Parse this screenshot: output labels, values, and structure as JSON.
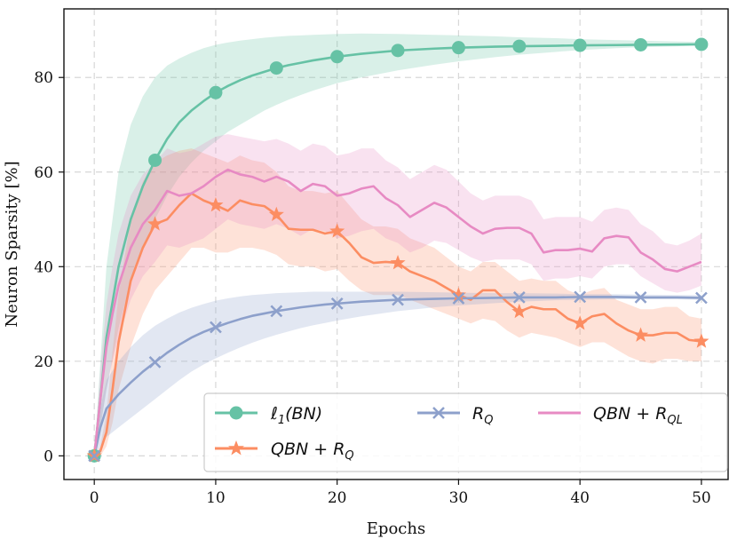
{
  "chart_data": {
    "type": "line",
    "xlabel": "Epochs",
    "ylabel": "Neuron Sparsity [%]",
    "xlim": [
      -2.5,
      52.2
    ],
    "ylim": [
      -5,
      94.5
    ],
    "xticks": [
      0,
      10,
      20,
      30,
      40,
      50
    ],
    "yticks": [
      0,
      20,
      40,
      60,
      80
    ],
    "grid": true,
    "legend_position": "lower-right",
    "series": [
      {
        "name": "ℓ1(BN)",
        "color": "#66c2a5",
        "marker": "circle",
        "x": [
          0,
          0.5,
          1,
          2,
          3,
          4,
          5,
          6,
          7,
          8,
          9,
          10,
          11,
          12,
          13,
          14,
          15,
          16,
          17,
          18,
          19,
          20,
          22,
          25,
          28,
          30,
          33,
          35,
          38,
          40,
          43,
          45,
          48,
          50
        ],
        "y": [
          0,
          12,
          25,
          40,
          50,
          57,
          62.5,
          67,
          70.5,
          73,
          75,
          76.8,
          78.2,
          79.4,
          80.4,
          81.2,
          82,
          82.6,
          83.1,
          83.6,
          84,
          84.4,
          85,
          85.7,
          86.1,
          86.3,
          86.5,
          86.6,
          86.7,
          86.8,
          86.85,
          86.9,
          86.95,
          87
        ],
        "lower": [
          0,
          6,
          14,
          27,
          37,
          44,
          50,
          55,
          59,
          62,
          64.5,
          66.5,
          68.5,
          70,
          71.5,
          73,
          74.2,
          75.3,
          76.3,
          77.2,
          78,
          78.8,
          80,
          81.5,
          82.7,
          83.4,
          84.3,
          84.8,
          85.4,
          85.8,
          86.2,
          86.4,
          86.6,
          86.8
        ],
        "upper": [
          0,
          20,
          40,
          60,
          70,
          76,
          80,
          82.5,
          84,
          85.2,
          86.2,
          86.9,
          87.4,
          87.8,
          88.1,
          88.4,
          88.6,
          88.8,
          88.9,
          89,
          89.1,
          89.2,
          89.3,
          89.2,
          89,
          88.9,
          88.7,
          88.5,
          88.3,
          88.1,
          87.9,
          87.8,
          87.6,
          87.5
        ],
        "marker_x": [
          0,
          5,
          10,
          15,
          20,
          25,
          30,
          35,
          40,
          45,
          50
        ]
      },
      {
        "name": "QBN + R_Q",
        "color": "#fc8d62",
        "marker": "star",
        "x": [
          0,
          0.5,
          1,
          1.5,
          2,
          3,
          4,
          5,
          6,
          7,
          8,
          9,
          10,
          11,
          12,
          13,
          14,
          15,
          16,
          17,
          18,
          19,
          20,
          21,
          22,
          23,
          24,
          25,
          26,
          27,
          28,
          29,
          30,
          31,
          32,
          33,
          34,
          35,
          36,
          37,
          38,
          39,
          40,
          41,
          42,
          43,
          44,
          45,
          46,
          47,
          48,
          49,
          50
        ],
        "y": [
          0,
          1,
          5,
          14,
          24,
          37,
          44,
          49,
          50,
          53,
          55.5,
          54,
          53,
          51.8,
          54,
          53.2,
          52.8,
          51,
          48,
          47.8,
          47.8,
          47,
          47.5,
          45,
          42,
          40.8,
          41,
          40.8,
          39,
          38,
          37,
          35.5,
          34,
          33,
          35,
          35,
          32.5,
          30.5,
          31.5,
          31,
          31,
          29,
          28,
          29.5,
          30,
          28,
          26.5,
          25.5,
          25.5,
          26,
          26,
          24.5,
          24.2
        ],
        "lower": [
          0,
          0,
          2,
          7,
          14,
          23,
          30,
          35,
          38,
          41,
          44,
          44,
          43,
          43,
          44,
          44,
          43.5,
          42.5,
          40.5,
          40,
          40,
          39,
          39.5,
          37,
          35,
          34,
          34,
          34,
          33,
          32,
          31,
          30,
          29,
          28,
          29,
          28.5,
          26.5,
          25,
          26,
          25.5,
          25,
          24,
          23,
          24,
          24,
          22.5,
          21,
          20,
          19.5,
          20.5,
          20.5,
          20,
          20
        ],
        "upper": [
          0,
          2,
          9,
          22,
          34,
          50,
          58,
          62,
          63.5,
          64.5,
          65,
          64,
          63,
          62,
          63.5,
          62.5,
          62,
          60,
          57,
          56,
          56,
          55.5,
          56,
          53,
          50,
          48.5,
          48.5,
          48,
          46,
          45,
          44,
          42,
          40,
          39,
          41,
          41,
          39,
          37,
          37.5,
          37,
          37,
          35,
          34,
          35,
          35.5,
          33,
          32,
          31,
          31,
          31.5,
          31.5,
          29.5,
          29
        ]
      },
      {
        "name": "R_Q",
        "color": "#8da0cb",
        "marker": "x",
        "x": [
          0,
          0.5,
          1,
          2,
          3,
          4,
          5,
          6,
          7,
          8,
          9,
          10,
          11,
          12,
          13,
          14,
          15,
          16,
          17,
          18,
          19,
          20,
          22,
          25,
          28,
          30,
          33,
          35,
          38,
          40,
          43,
          45,
          48,
          50
        ],
        "y": [
          0,
          6,
          10,
          13,
          15.5,
          17.8,
          19.8,
          21.8,
          23.5,
          25,
          26.2,
          27.2,
          28.1,
          28.9,
          29.6,
          30.1,
          30.6,
          31,
          31.4,
          31.7,
          32,
          32.2,
          32.6,
          33,
          33.2,
          33.3,
          33.4,
          33.5,
          33.5,
          33.6,
          33.6,
          33.5,
          33.5,
          33.4
        ],
        "lower": [
          0,
          2,
          4,
          6,
          8,
          10,
          12,
          14,
          16,
          17.8,
          19.3,
          20.6,
          21.8,
          22.9,
          23.9,
          24.8,
          25.6,
          26.3,
          27,
          27.6,
          28.1,
          28.6,
          29.5,
          30.6,
          31.4,
          31.8,
          32.3,
          32.6,
          32.9,
          33,
          33.1,
          33.1,
          33.1,
          33
        ],
        "upper": [
          0,
          10,
          16,
          20,
          23,
          25.5,
          27.5,
          29,
          30.3,
          31.3,
          32.1,
          32.8,
          33.3,
          33.7,
          34,
          34.2,
          34.4,
          34.5,
          34.6,
          34.7,
          34.7,
          34.7,
          34.7,
          34.7,
          34.6,
          34.5,
          34.4,
          34.4,
          34.3,
          34.2,
          34.2,
          34.1,
          34,
          34
        ],
        "marker_x": [
          0,
          5,
          10,
          15,
          20,
          25,
          30,
          35,
          40,
          45,
          50
        ]
      },
      {
        "name": "QBN + R_QL",
        "color": "#e78ac3",
        "marker": "none",
        "x": [
          0,
          0.5,
          1,
          1.5,
          2,
          3,
          4,
          5,
          6,
          7,
          8,
          9,
          10,
          11,
          12,
          13,
          14,
          15,
          16,
          17,
          18,
          19,
          20,
          21,
          22,
          23,
          24,
          25,
          26,
          27,
          28,
          29,
          30,
          31,
          32,
          33,
          34,
          35,
          36,
          37,
          38,
          39,
          40,
          41,
          42,
          43,
          44,
          45,
          46,
          47,
          48,
          49,
          50
        ],
        "y": [
          0,
          12,
          23,
          30,
          36,
          44,
          49,
          52,
          56,
          55,
          55.5,
          57,
          59,
          60.5,
          59.5,
          59,
          58,
          59,
          58,
          56,
          57.5,
          57,
          55,
          55.5,
          56.5,
          57,
          54.5,
          53,
          50.5,
          52,
          53.5,
          52.5,
          50.5,
          48.5,
          47,
          48,
          48.2,
          48.2,
          47,
          43,
          43.5,
          43.5,
          43.8,
          43.2,
          46,
          46.5,
          46.2,
          43,
          41.5,
          39.5,
          39,
          40,
          41
        ],
        "lower": [
          0,
          6,
          14,
          20,
          25,
          33,
          38,
          41,
          44.5,
          44,
          45,
          46,
          48,
          50,
          49,
          48.5,
          48,
          49,
          48,
          46.5,
          48,
          47.5,
          46,
          46.5,
          47.5,
          48,
          46,
          45,
          43,
          44,
          45.5,
          45,
          43.5,
          42,
          41,
          41.5,
          41.5,
          41.5,
          40.5,
          37,
          37.5,
          37.5,
          38,
          37.5,
          40,
          40.5,
          40.5,
          38,
          36.5,
          35,
          34.5,
          35,
          36
        ],
        "upper": [
          0,
          18,
          32,
          40,
          47,
          55,
          59.5,
          62,
          65,
          64,
          64.5,
          66,
          67.5,
          68,
          67.5,
          67,
          66.5,
          67,
          66,
          64.5,
          66,
          65.5,
          63.5,
          64,
          65,
          65,
          62.5,
          61,
          58.5,
          60,
          61.5,
          60.5,
          58,
          55.5,
          54,
          55,
          55,
          55,
          54,
          50,
          50.5,
          50.5,
          50.5,
          49.5,
          52,
          52.5,
          52,
          49,
          47.5,
          45,
          44.5,
          45.5,
          47
        ]
      }
    ]
  },
  "legend": {
    "items": [
      {
        "id": "l1bn",
        "main": "ℓ",
        "sub1": "1",
        "rest": "(BN)"
      },
      {
        "id": "rq",
        "main": "R",
        "sub1": "Q",
        "rest": ""
      },
      {
        "id": "qbnrql",
        "main": "QBN + R",
        "sub1": "QL",
        "rest": ""
      },
      {
        "id": "qbnrq",
        "main": "QBN + R",
        "sub1": "Q",
        "rest": ""
      }
    ]
  }
}
